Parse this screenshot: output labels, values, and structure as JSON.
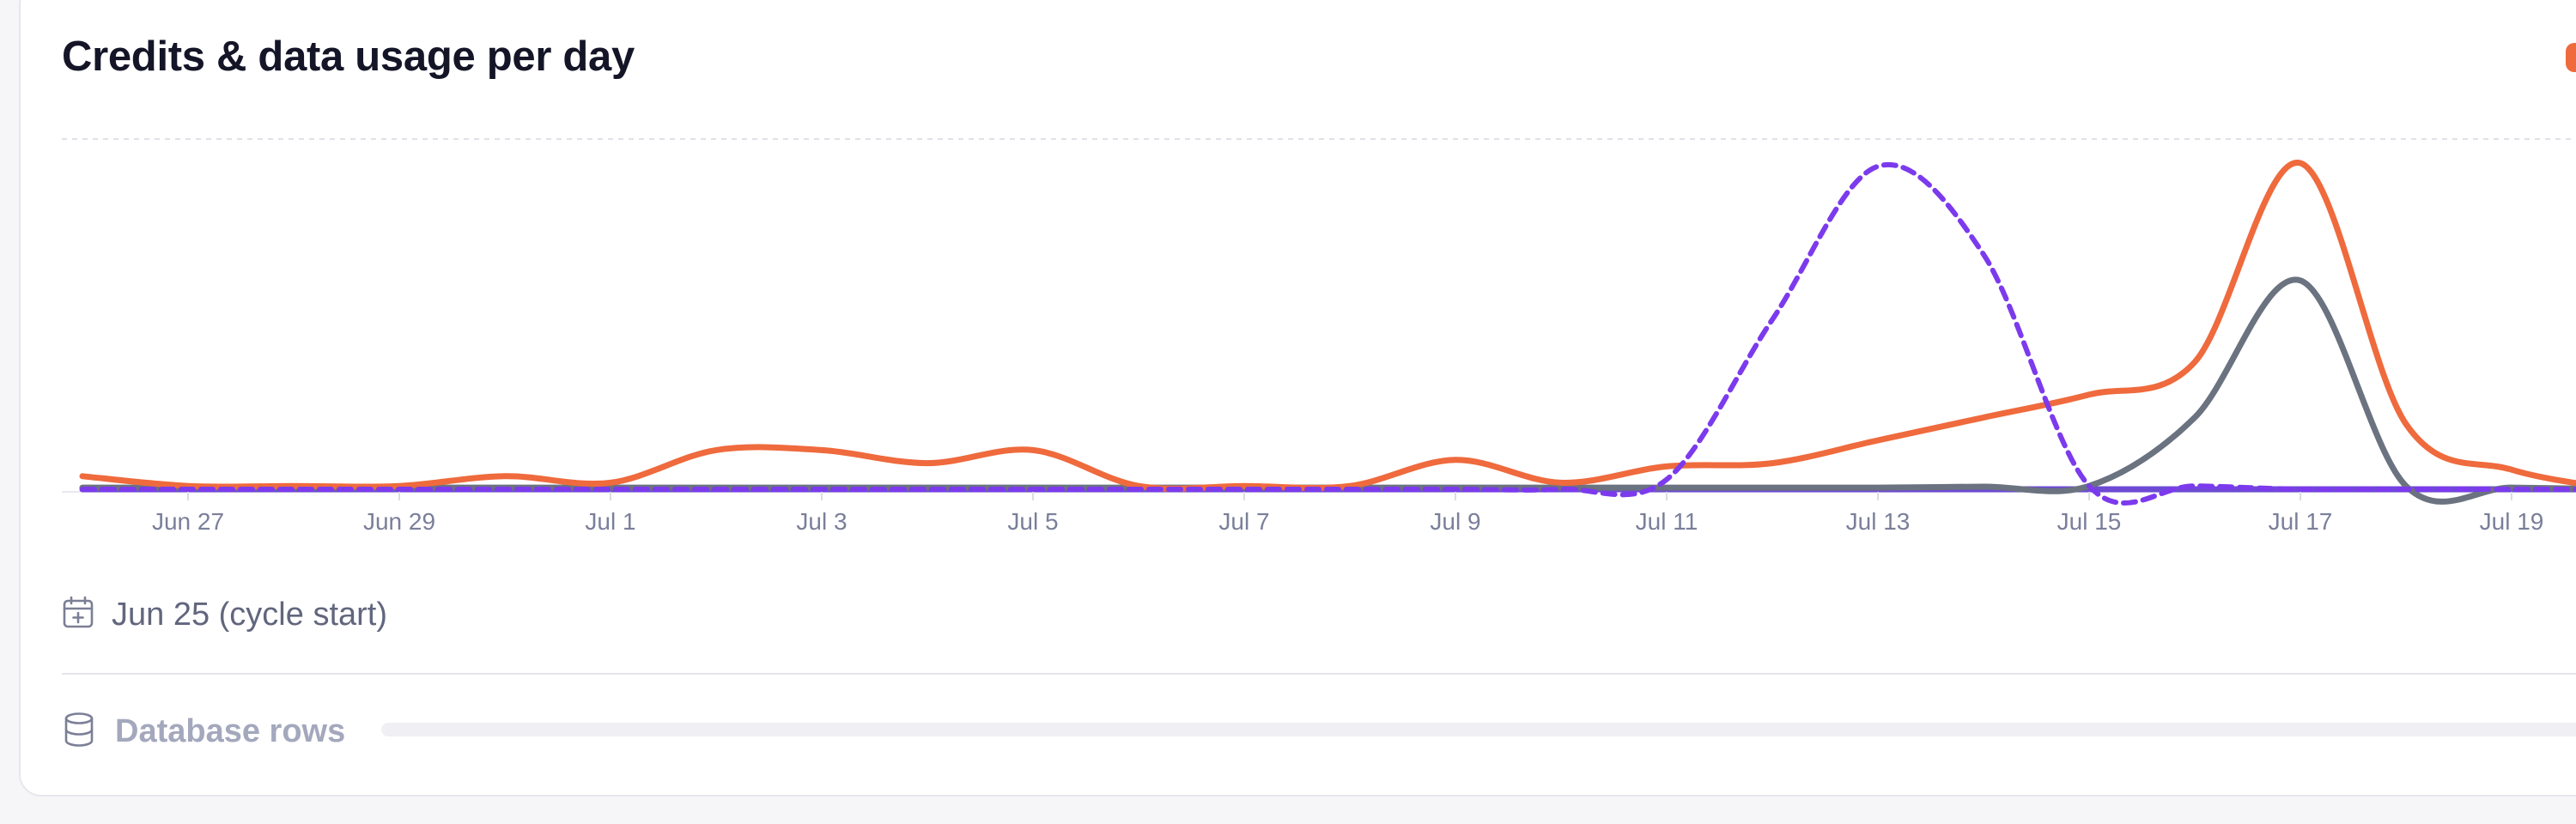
{
  "card": {
    "title": "Credits & data usage per day"
  },
  "legend": {
    "visible_swatch_color": "#ef6a3d"
  },
  "cycle": {
    "icon": "calendar-icon",
    "label": "Jun 25 (cycle start)"
  },
  "database": {
    "icon": "database-icon",
    "label": "Database rows"
  },
  "chart_data": {
    "type": "line",
    "x": [
      "Jun 26",
      "Jun 27",
      "Jun 28",
      "Jun 29",
      "Jun 30",
      "Jul 1",
      "Jul 2",
      "Jul 3",
      "Jul 4",
      "Jul 5",
      "Jul 6",
      "Jul 7",
      "Jul 8",
      "Jul 9",
      "Jul 10",
      "Jul 11",
      "Jul 12",
      "Jul 13",
      "Jul 14",
      "Jul 15",
      "Jul 16",
      "Jul 17",
      "Jul 18",
      "Jul 19",
      "Jul 20"
    ],
    "tick_labels": [
      "Jun 27",
      "Jun 29",
      "Jul 1",
      "Jul 3",
      "Jul 5",
      "Jul 7",
      "Jul 9",
      "Jul 11",
      "Jul 13",
      "Jul 15",
      "Jul 17",
      "Jul 19"
    ],
    "ylim": [
      0,
      100
    ],
    "grid": "top dashed line only",
    "y_axis_labels": "none",
    "series": [
      {
        "color": "#ef6a3d",
        "style": "solid",
        "values": [
          4,
          1,
          1,
          1,
          4,
          2,
          12,
          12,
          8,
          12,
          1,
          1,
          1,
          9,
          2,
          7,
          8,
          15,
          22,
          29,
          39,
          100,
          20,
          6,
          0
        ]
      },
      {
        "color": "#6b7280",
        "style": "solid",
        "values": [
          0.5,
          0.5,
          0.5,
          0.5,
          0.5,
          0.5,
          0.5,
          0.5,
          0.5,
          0.5,
          0.5,
          0.5,
          0.5,
          0.5,
          0.5,
          0.5,
          0.5,
          0.5,
          0.8,
          1,
          22,
          64,
          1,
          0.5,
          0
        ]
      },
      {
        "color": "#7c3aed",
        "style": "dashed",
        "values": [
          0,
          0,
          0,
          0,
          0,
          0,
          0,
          0,
          0,
          0,
          0,
          0,
          0,
          0,
          0,
          3,
          52,
          99,
          72,
          1,
          1,
          0,
          0,
          0,
          0
        ]
      },
      {
        "color": "#6d4ad4",
        "style": "solid",
        "values": [
          0,
          0,
          0,
          0,
          0,
          0,
          0,
          0,
          0,
          0,
          0,
          0,
          0,
          0,
          0,
          0,
          0,
          0,
          0,
          0,
          0,
          0,
          0,
          0,
          0
        ]
      }
    ]
  }
}
